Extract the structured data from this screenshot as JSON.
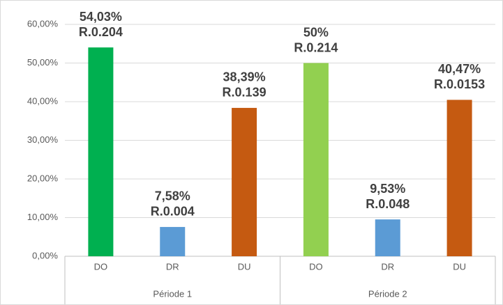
{
  "chart_data": {
    "type": "bar",
    "categories": [
      "DO",
      "DR",
      "DU",
      "DO",
      "DR",
      "DU"
    ],
    "group_labels": [
      "Période 1",
      "Période 2"
    ],
    "values": [
      54.03,
      7.58,
      38.39,
      50,
      9.53,
      40.47
    ],
    "value_labels": [
      "54,03%",
      "7,58%",
      "38,39%",
      "50%",
      "9,53%",
      "40,47%"
    ],
    "annotations": [
      "R.0.204",
      "R.0.004",
      "R.0.139",
      "R.0.214",
      "R.0.048",
      "R.0.0153"
    ],
    "colors": [
      "#00b050",
      "#5b9bd5",
      "#c55a11",
      "#92d050",
      "#5b9bd5",
      "#c55a11"
    ],
    "ylim": [
      0,
      60
    ],
    "yticks": [
      {
        "value": 0,
        "label": "0,00%"
      },
      {
        "value": 10,
        "label": "10,00%"
      },
      {
        "value": 20,
        "label": "20,00%"
      },
      {
        "value": 30,
        "label": "30,00%"
      },
      {
        "value": 40,
        "label": "40,00%"
      },
      {
        "value": 50,
        "label": "50,00%"
      },
      {
        "value": 60,
        "label": "60,00%"
      }
    ],
    "grid": true
  }
}
